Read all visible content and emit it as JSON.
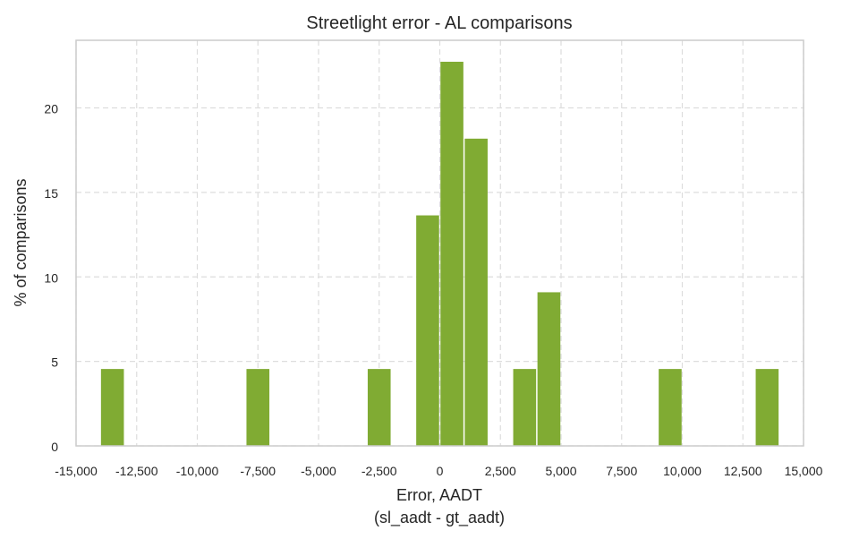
{
  "chart_data": {
    "type": "bar",
    "title": "Streetlight error - AL comparisons",
    "xlabel_line1": "Error, AADT",
    "xlabel_line2": "(sl_aadt - gt_aadt)",
    "ylabel": "% of comparisons",
    "xlim": [
      -15000,
      15000
    ],
    "ylim": [
      0,
      24
    ],
    "x_ticks": [
      -15000,
      -12500,
      -10000,
      -7500,
      -5000,
      -2500,
      0,
      2500,
      5000,
      7500,
      10000,
      12500,
      15000
    ],
    "x_tick_labels": [
      "-15,000",
      "-12,500",
      "-10,000",
      "-7,500",
      "-5,000",
      "-2,500",
      "0",
      "2,500",
      "5,000",
      "7,500",
      "10,000",
      "12,500",
      "15,000"
    ],
    "y_ticks": [
      0,
      5,
      10,
      15,
      20
    ],
    "y_tick_labels": [
      "0",
      "5",
      "10",
      "15",
      "20"
    ],
    "bin_width": 1000,
    "bars": [
      {
        "x_start": -14000,
        "value": 4.55
      },
      {
        "x_start": -8000,
        "value": 4.55
      },
      {
        "x_start": -3000,
        "value": 4.55
      },
      {
        "x_start": -1000,
        "value": 13.64
      },
      {
        "x_start": 0,
        "value": 22.73
      },
      {
        "x_start": 1000,
        "value": 18.18
      },
      {
        "x_start": 3000,
        "value": 4.55
      },
      {
        "x_start": 4000,
        "value": 9.09
      },
      {
        "x_start": 9000,
        "value": 4.55
      },
      {
        "x_start": 13000,
        "value": 4.55
      }
    ],
    "grid": true,
    "bar_color": "#80ab33"
  }
}
